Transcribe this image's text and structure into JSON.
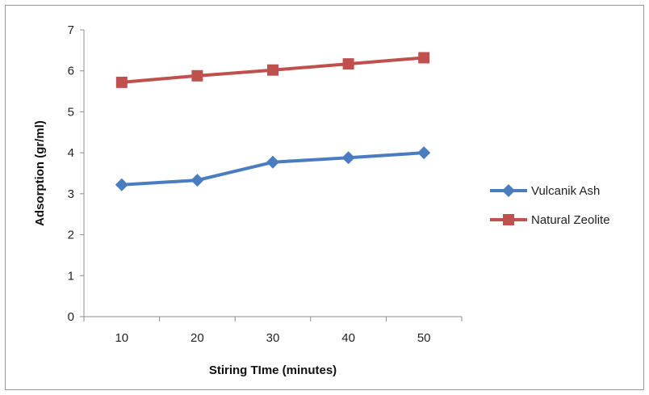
{
  "chart_data": {
    "type": "line",
    "title": "",
    "xlabel": "Stiring TIme (minutes)",
    "ylabel": "Adsorption (gr/ml)",
    "categories": [
      "10",
      "20",
      "30",
      "40",
      "50"
    ],
    "ylim": [
      0,
      7
    ],
    "yticks": [
      "0",
      "1",
      "2",
      "3",
      "4",
      "5",
      "6",
      "7"
    ],
    "grid": false,
    "legend_position": "right",
    "series": [
      {
        "name": "Vulcanik Ash",
        "values": [
          3.22,
          3.33,
          3.77,
          3.88,
          4.0
        ],
        "color": "#4a7cc0",
        "marker": "diamond"
      },
      {
        "name": "Natural Zeolite",
        "values": [
          5.72,
          5.88,
          6.02,
          6.17,
          6.32
        ],
        "color": "#c0504d",
        "marker": "square"
      }
    ]
  }
}
